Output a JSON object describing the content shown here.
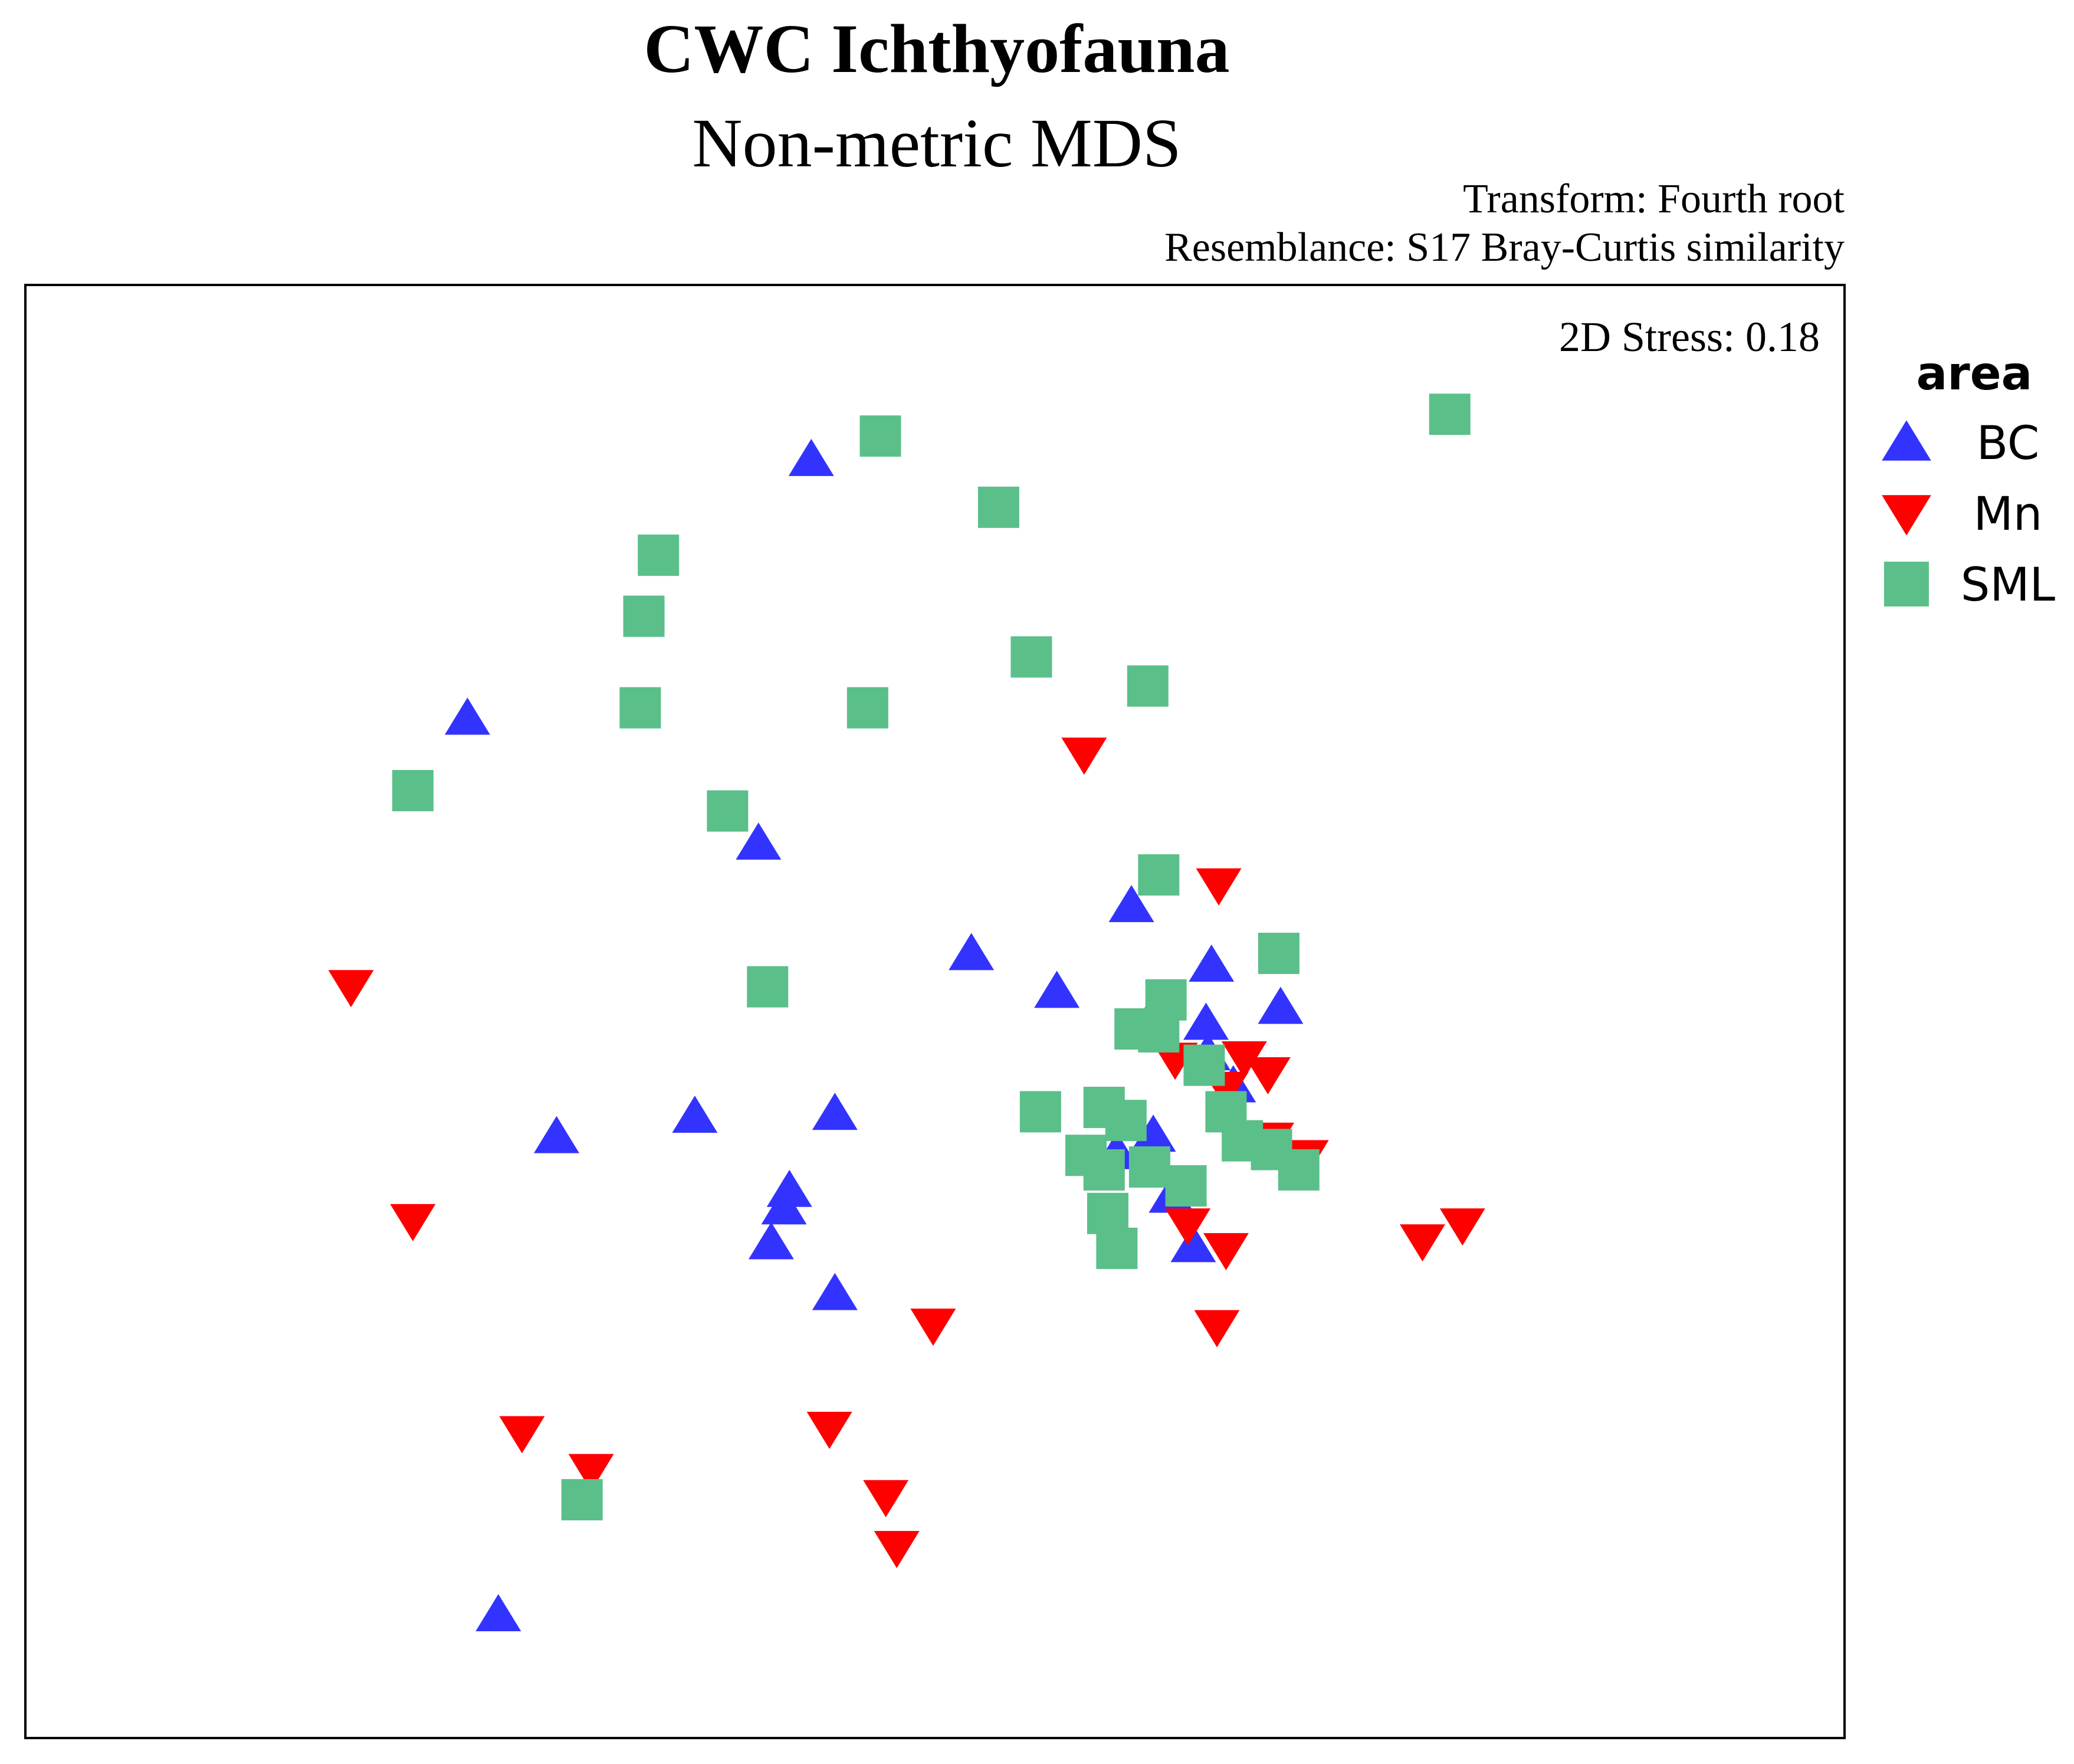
{
  "chart_data": {
    "type": "scatter",
    "title": "CWC Ichthyofauna",
    "subtitle": "Non-metric MDS",
    "annotations": {
      "transform": "Transform: Fourth root",
      "resemblance": "Resemblance: S17 Bray-Curtis similarity",
      "stress": "2D Stress: 0.18"
    },
    "xlabel": "",
    "ylabel": "",
    "xlim": [
      0,
      100
    ],
    "ylim": [
      0,
      100
    ],
    "grid": false,
    "axis_ticks": false,
    "legend": {
      "title": "area",
      "placement": "right-top"
    },
    "series": [
      {
        "name": "BC",
        "marker": "triangle-up",
        "color": "#3333ff",
        "points": [
          [
            43.2,
            88.0
          ],
          [
            24.3,
            70.2
          ],
          [
            40.3,
            61.6
          ],
          [
            52.0,
            54.0
          ],
          [
            60.8,
            57.3
          ],
          [
            56.7,
            51.4
          ],
          [
            65.2,
            53.2
          ],
          [
            69.0,
            50.3
          ],
          [
            61.8,
            49.4
          ],
          [
            64.9,
            49.2
          ],
          [
            65.0,
            47.1
          ],
          [
            66.4,
            44.9
          ],
          [
            29.2,
            41.4
          ],
          [
            36.8,
            42.8
          ],
          [
            44.5,
            43.0
          ],
          [
            62.0,
            41.5
          ],
          [
            42.0,
            37.7
          ],
          [
            41.7,
            36.5
          ],
          [
            41.0,
            34.1
          ],
          [
            44.5,
            30.6
          ],
          [
            60.0,
            40.3
          ],
          [
            63.0,
            37.3
          ],
          [
            64.2,
            33.9
          ],
          [
            26.0,
            8.5
          ]
        ]
      },
      {
        "name": "Mn",
        "marker": "triangle-down",
        "color": "#ff0000",
        "points": [
          [
            58.2,
            67.7
          ],
          [
            65.6,
            58.7
          ],
          [
            17.9,
            51.7
          ],
          [
            63.2,
            46.7
          ],
          [
            67.0,
            46.8
          ],
          [
            68.3,
            45.7
          ],
          [
            66.0,
            44.7
          ],
          [
            68.5,
            41.2
          ],
          [
            70.4,
            40.0
          ],
          [
            21.3,
            35.6
          ],
          [
            63.9,
            35.3
          ],
          [
            66.0,
            33.6
          ],
          [
            76.8,
            34.2
          ],
          [
            79.0,
            35.3
          ],
          [
            49.9,
            28.4
          ],
          [
            65.5,
            28.3
          ],
          [
            27.3,
            21.0
          ],
          [
            31.1,
            18.4
          ],
          [
            44.2,
            21.3
          ],
          [
            47.3,
            16.6
          ],
          [
            47.9,
            13.1
          ]
        ]
      },
      {
        "name": "SML",
        "marker": "square",
        "color": "#5bbf8a",
        "points": [
          [
            47.0,
            89.6
          ],
          [
            78.3,
            91.1
          ],
          [
            53.5,
            84.7
          ],
          [
            34.8,
            81.4
          ],
          [
            34.0,
            77.2
          ],
          [
            55.3,
            74.4
          ],
          [
            61.7,
            72.4
          ],
          [
            33.8,
            70.9
          ],
          [
            46.3,
            70.9
          ],
          [
            21.3,
            65.2
          ],
          [
            38.6,
            63.8
          ],
          [
            62.3,
            59.4
          ],
          [
            68.9,
            54.0
          ],
          [
            40.8,
            51.7
          ],
          [
            62.7,
            50.8
          ],
          [
            61.0,
            48.8
          ],
          [
            62.3,
            48.6
          ],
          [
            64.8,
            46.3
          ],
          [
            55.8,
            43.1
          ],
          [
            59.3,
            43.4
          ],
          [
            60.5,
            42.5
          ],
          [
            66.0,
            43.1
          ],
          [
            66.9,
            41.1
          ],
          [
            68.5,
            40.5
          ],
          [
            58.3,
            40.1
          ],
          [
            59.3,
            39.1
          ],
          [
            61.8,
            39.3
          ],
          [
            63.8,
            38.0
          ],
          [
            70.0,
            39.1
          ],
          [
            59.5,
            36.1
          ],
          [
            60.0,
            33.7
          ],
          [
            30.6,
            16.4
          ]
        ]
      }
    ]
  }
}
